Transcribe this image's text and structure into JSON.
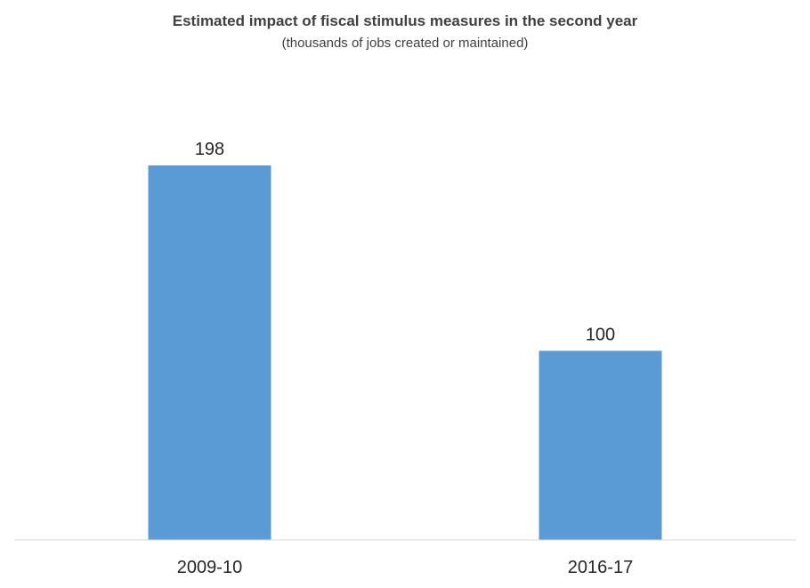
{
  "chart_data": {
    "type": "bar",
    "title": "Estimated impact of fiscal stimulus measures in the second year",
    "subtitle": "(thousands of jobs created or maintained)",
    "categories": [
      "2009-10",
      "2016-17"
    ],
    "values": [
      198,
      100
    ],
    "data_labels": [
      "198",
      "100"
    ],
    "xlabel": "",
    "ylabel": "",
    "ylim": [
      0,
      198
    ],
    "grid": false,
    "legend": "none",
    "bar_color": "#5B9BD5",
    "axis_color": "#D9D9D9"
  }
}
